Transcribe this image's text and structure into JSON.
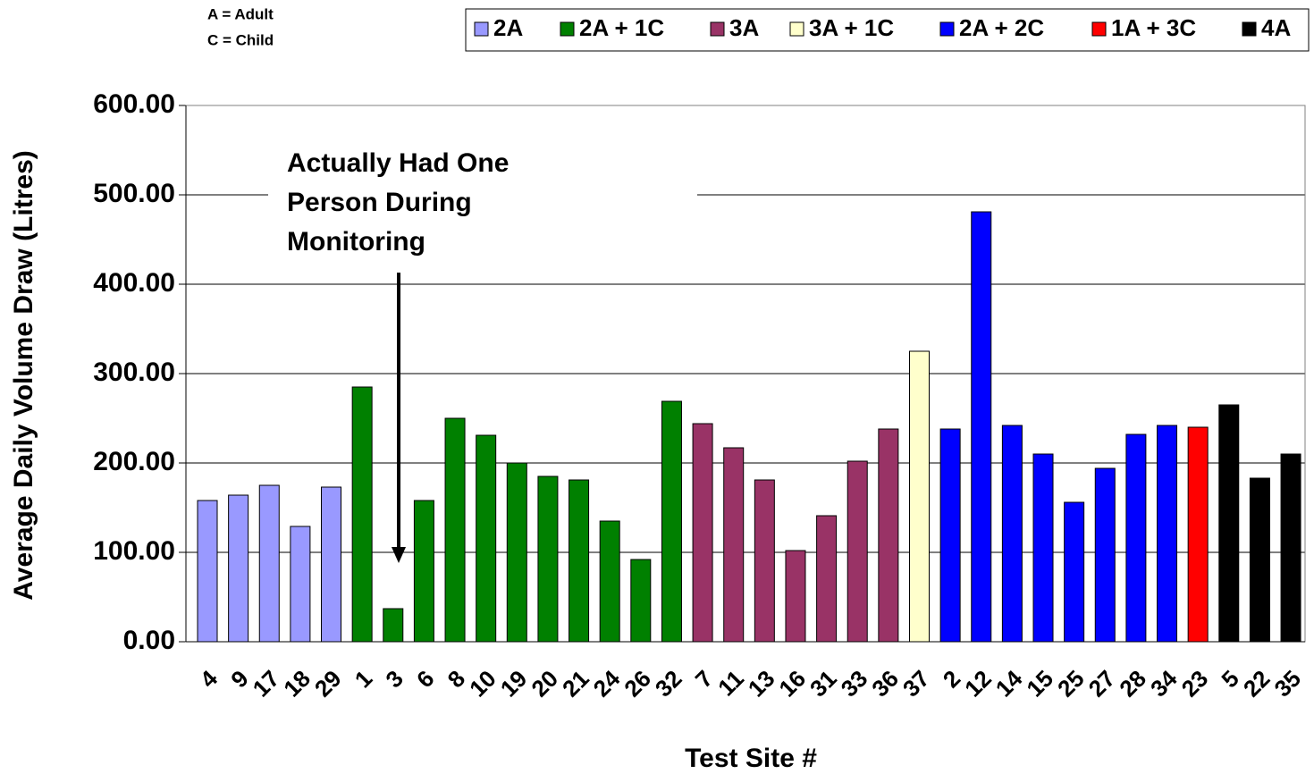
{
  "chart_data": {
    "type": "bar",
    "notes": [
      "A = Adult",
      "C = Child"
    ],
    "annotation": [
      "Actually Had One",
      "Person During",
      "Monitoring"
    ],
    "x_label": "Test Site #",
    "y_label": "Average Daily Volume Draw  (Litres)",
    "categories": [
      "4",
      "9",
      "17",
      "18",
      "29",
      "1",
      "3",
      "6",
      "8",
      "10",
      "19",
      "20",
      "21",
      "24",
      "26",
      "32",
      "7",
      "11",
      "13",
      "16",
      "31",
      "33",
      "36",
      "37",
      "2",
      "12",
      "14",
      "15",
      "25",
      "27",
      "28",
      "34",
      "23",
      "5",
      "22",
      "35"
    ],
    "series": [
      {
        "name": "2A",
        "color": "#9999ff",
        "values": [
          158,
          164,
          175,
          129,
          173,
          null,
          null,
          null,
          null,
          null,
          null,
          null,
          null,
          null,
          null,
          null,
          null,
          null,
          null,
          null,
          null,
          null,
          null,
          null,
          null,
          null,
          null,
          null,
          null,
          null,
          null,
          null,
          null,
          null,
          null,
          null
        ]
      },
      {
        "name": "2A + 1C",
        "color": "#008000",
        "values": [
          null,
          null,
          null,
          null,
          null,
          285,
          37,
          158,
          250,
          231,
          200,
          185,
          181,
          135,
          92,
          269,
          null,
          null,
          null,
          null,
          null,
          null,
          null,
          null,
          null,
          null,
          null,
          null,
          null,
          null,
          null,
          null,
          null,
          null,
          null,
          null
        ]
      },
      {
        "name": "3A",
        "color": "#993366",
        "values": [
          null,
          null,
          null,
          null,
          null,
          null,
          null,
          null,
          null,
          null,
          null,
          null,
          null,
          null,
          null,
          null,
          244,
          217,
          181,
          102,
          141,
          202,
          238,
          null,
          null,
          null,
          null,
          null,
          null,
          null,
          null,
          null,
          null,
          null,
          null,
          null
        ]
      },
      {
        "name": "3A + 1C",
        "color": "#ffffcc",
        "values": [
          null,
          null,
          null,
          null,
          null,
          null,
          null,
          null,
          null,
          null,
          null,
          null,
          null,
          null,
          null,
          null,
          null,
          null,
          null,
          null,
          null,
          null,
          null,
          325,
          null,
          null,
          null,
          null,
          null,
          null,
          null,
          null,
          null,
          null,
          null,
          null
        ]
      },
      {
        "name": "2A + 2C",
        "color": "#0000ff",
        "values": [
          null,
          null,
          null,
          null,
          null,
          null,
          null,
          null,
          null,
          null,
          null,
          null,
          null,
          null,
          null,
          null,
          null,
          null,
          null,
          null,
          null,
          null,
          null,
          null,
          238,
          481,
          242,
          210,
          156,
          194,
          232,
          242,
          null,
          null,
          null,
          null
        ]
      },
      {
        "name": "1A + 3C",
        "color": "#ff0000",
        "values": [
          null,
          null,
          null,
          null,
          null,
          null,
          null,
          null,
          null,
          null,
          null,
          null,
          null,
          null,
          null,
          null,
          null,
          null,
          null,
          null,
          null,
          null,
          null,
          null,
          null,
          null,
          null,
          null,
          null,
          null,
          null,
          null,
          240,
          null,
          null,
          null
        ]
      },
      {
        "name": "4A",
        "color": "#000000",
        "values": [
          null,
          null,
          null,
          null,
          null,
          null,
          null,
          null,
          null,
          null,
          null,
          null,
          null,
          null,
          null,
          null,
          null,
          null,
          null,
          null,
          null,
          null,
          null,
          null,
          null,
          null,
          null,
          null,
          null,
          null,
          null,
          null,
          null,
          265,
          183,
          210
        ]
      }
    ],
    "ylim": [
      0,
      600
    ],
    "yticks": [
      {
        "value": 0,
        "label": "0.00"
      },
      {
        "value": 100,
        "label": "100.00"
      },
      {
        "value": 200,
        "label": "200.00"
      },
      {
        "value": 300,
        "label": "300.00"
      },
      {
        "value": 400,
        "label": "400.00"
      },
      {
        "value": 500,
        "label": "500.00"
      },
      {
        "value": 600,
        "label": "600.00"
      }
    ],
    "grid": true,
    "legend": "top"
  }
}
